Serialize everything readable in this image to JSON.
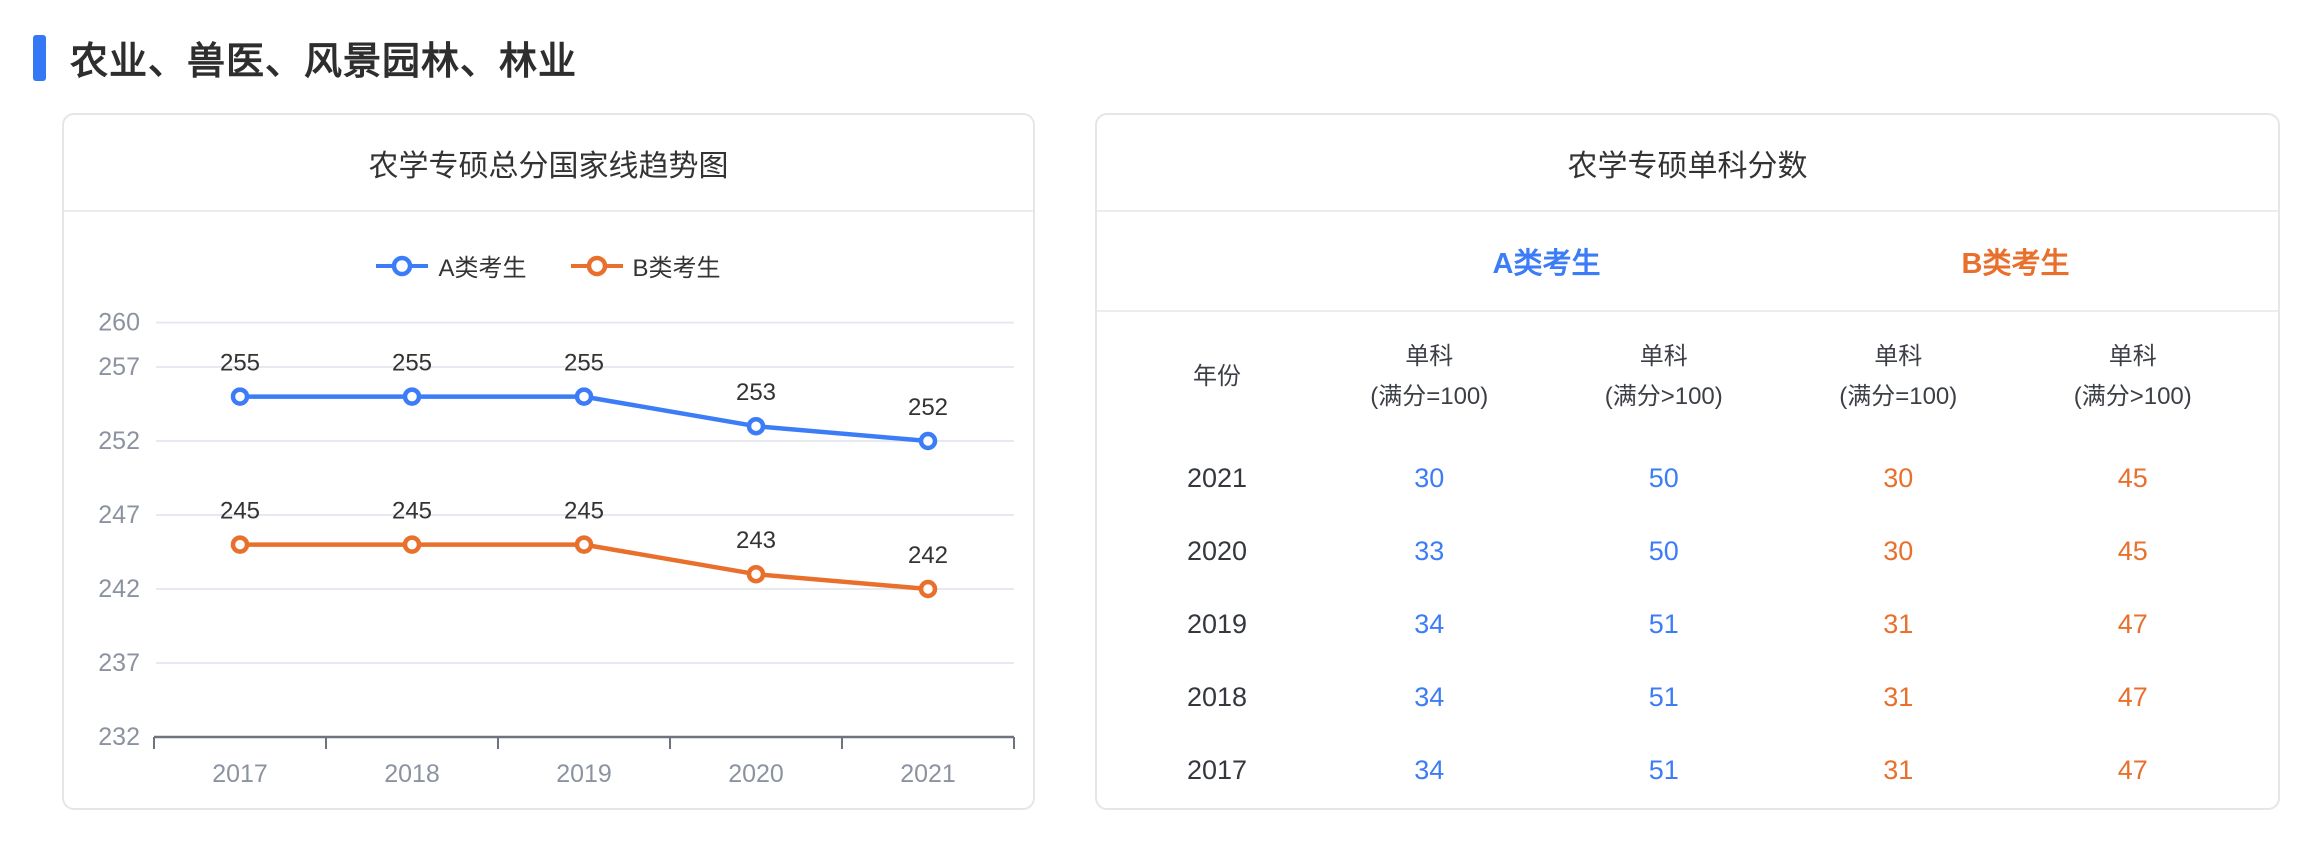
{
  "page": {
    "section_title": "农业、兽医、风景园林、林业"
  },
  "colors": {
    "section_bar": "#3478F6",
    "accent_blue": "#3C7DF7",
    "accent_orange": "#E9702C",
    "axis_text": "#8C93A0",
    "grid_line": "#E6E9F0",
    "axis_line": "#6E737E",
    "data_label": "#333333"
  },
  "chart_data": {
    "type": "line",
    "title": "农学专硕总分国家线趋势图",
    "categories": [
      "2017",
      "2018",
      "2019",
      "2020",
      "2021"
    ],
    "series": [
      {
        "name": "A类考生",
        "color": "#3C7DF7",
        "values": [
          255,
          255,
          255,
          253,
          252
        ]
      },
      {
        "name": "B类考生",
        "color": "#E9702C",
        "values": [
          245,
          245,
          245,
          243,
          242
        ]
      }
    ],
    "xlabel": "",
    "ylabel": "",
    "ylim": [
      232,
      260
    ],
    "yticks": [
      232,
      237,
      242,
      247,
      252,
      257,
      260
    ],
    "grid": true,
    "legend_position": "top",
    "data_labels": true
  },
  "table_card": {
    "title": "农学专硕单科分数",
    "groups": [
      {
        "label": "A类考生",
        "color": "#3C7DF7"
      },
      {
        "label": "B类考生",
        "color": "#E9702C"
      }
    ],
    "columns": [
      {
        "line1": "年份",
        "line2": ""
      },
      {
        "line1": "单科",
        "line2": "(满分=100)"
      },
      {
        "line1": "单科",
        "line2": "(满分>100)"
      },
      {
        "line1": "单科",
        "line2": "(满分=100)"
      },
      {
        "line1": "单科",
        "line2": "(满分>100)"
      }
    ],
    "rows": [
      {
        "year": "2021",
        "values": [
          "30",
          "50",
          "30",
          "45"
        ]
      },
      {
        "year": "2020",
        "values": [
          "33",
          "50",
          "30",
          "45"
        ]
      },
      {
        "year": "2019",
        "values": [
          "34",
          "51",
          "31",
          "47"
        ]
      },
      {
        "year": "2018",
        "values": [
          "34",
          "51",
          "31",
          "47"
        ]
      },
      {
        "year": "2017",
        "values": [
          "34",
          "51",
          "31",
          "47"
        ]
      }
    ]
  }
}
